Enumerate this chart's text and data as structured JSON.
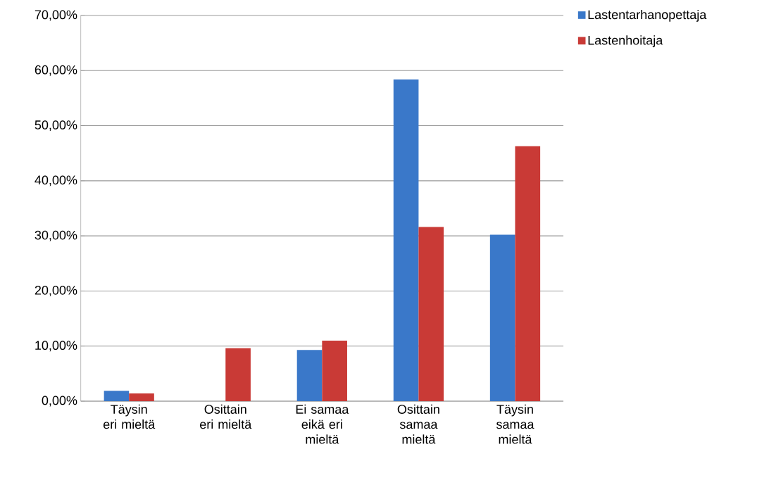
{
  "chart_data": {
    "type": "bar",
    "categories": [
      "Täysin eri mieltä",
      "Osittain eri mieltä",
      "Ei samaa eikä eri mieltä",
      "Osittain samaa mieltä",
      "Täysin samaa mieltä"
    ],
    "series": [
      {
        "name": "Lastentarhanopettaja",
        "color": "#3a78c9",
        "values": [
          1.9,
          0,
          9.3,
          58.4,
          30.2
        ]
      },
      {
        "name": "Lastenhoitaja",
        "color": "#c93a36",
        "values": [
          1.4,
          9.6,
          11.0,
          31.6,
          46.3
        ]
      }
    ],
    "ylim": [
      0,
      70
    ],
    "yticks": [
      {
        "value": 0,
        "label": "0,00%"
      },
      {
        "value": 10,
        "label": "10,00%"
      },
      {
        "value": 20,
        "label": "20,00%"
      },
      {
        "value": 30,
        "label": "30,00%"
      },
      {
        "value": 40,
        "label": "40,00%"
      },
      {
        "value": 50,
        "label": "50,00%"
      },
      {
        "value": 60,
        "label": "60,00%"
      },
      {
        "value": 70,
        "label": "70,00%"
      }
    ],
    "grid": "y",
    "legend": "top right"
  }
}
